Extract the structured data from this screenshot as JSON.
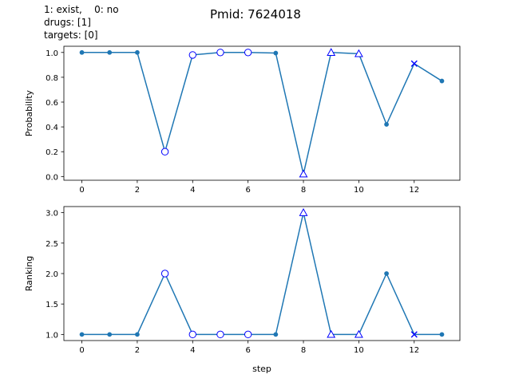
{
  "legend_note": {
    "line1": "1: exist,    0: no",
    "line2": "drugs: [1]",
    "line3": "targets: [0]"
  },
  "colors": {
    "line": "#1f77b4",
    "marker_special": "#0000ff",
    "axis": "#000000",
    "background": "#ffffff"
  },
  "chart_data": [
    {
      "type": "line",
      "title": "Pmid: 7624018",
      "xlabel": "",
      "ylabel": "Probability",
      "x": [
        0,
        1,
        2,
        3,
        4,
        5,
        6,
        7,
        8,
        9,
        10,
        11,
        12,
        13
      ],
      "values": [
        1.0,
        1.0,
        1.0,
        0.2,
        0.98,
        1.0,
        1.0,
        0.995,
        0.02,
        1.0,
        0.99,
        0.42,
        0.91,
        0.77
      ],
      "markers": [
        "dot",
        "dot",
        "dot",
        "circle",
        "circle",
        "circle",
        "circle",
        "dot",
        "triangle",
        "triangle",
        "triangle",
        "dot",
        "x",
        "dot"
      ],
      "xlim": [
        -0.65,
        13.65
      ],
      "ylim": [
        -0.03,
        1.05
      ],
      "xticks": [
        0,
        2,
        4,
        6,
        8,
        10,
        12
      ],
      "yticks": [
        0.0,
        0.2,
        0.4,
        0.6,
        0.8,
        1.0
      ],
      "ytick_labels": [
        "0.0",
        "0.2",
        "0.4",
        "0.6",
        "0.8",
        "1.0"
      ],
      "grid": false
    },
    {
      "type": "line",
      "title": "",
      "xlabel": "step",
      "ylabel": "Ranking",
      "x": [
        0,
        1,
        2,
        3,
        4,
        5,
        6,
        7,
        8,
        9,
        10,
        11,
        12,
        13
      ],
      "values": [
        1,
        1,
        1,
        2,
        1,
        1,
        1,
        1,
        3,
        1,
        1,
        2,
        1,
        1
      ],
      "markers": [
        "dot",
        "dot",
        "dot",
        "circle",
        "circle",
        "circle",
        "circle",
        "dot",
        "triangle",
        "triangle",
        "triangle",
        "dot",
        "x",
        "dot"
      ],
      "xlim": [
        -0.65,
        13.65
      ],
      "ylim": [
        0.9,
        3.1
      ],
      "xticks": [
        0,
        2,
        4,
        6,
        8,
        10,
        12
      ],
      "yticks": [
        1.0,
        1.5,
        2.0,
        2.5,
        3.0
      ],
      "ytick_labels": [
        "1.0",
        "1.5",
        "2.0",
        "2.5",
        "3.0"
      ],
      "grid": false
    }
  ]
}
